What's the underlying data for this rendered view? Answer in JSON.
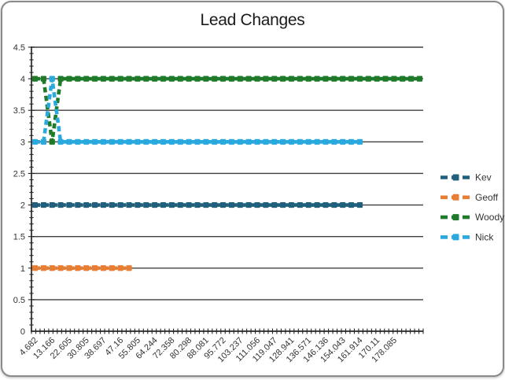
{
  "window": {
    "background": "#ffffff",
    "border_color": "#8a8a8a"
  },
  "chart_data": {
    "type": "line",
    "title": "Lead Changes",
    "xlabel": "",
    "ylabel": "",
    "ylim": [
      0,
      4.5
    ],
    "ytick_step": 0.5,
    "ytick_labels": [
      "0",
      "0.5",
      "1",
      "1.5",
      "2",
      "2.5",
      "3",
      "3.5",
      "4",
      "4.5"
    ],
    "x_tick_labels": [
      "4.682",
      "13.166",
      "22.605",
      "30.805",
      "38.697",
      "47.16",
      "55.805",
      "64.244",
      "72.358",
      "80.298",
      "88.081",
      "95.772",
      "103.237",
      "111.056",
      "119.047",
      "128.941",
      "136.571",
      "146.136",
      "154.043",
      "161.914",
      "170.11",
      "178.085"
    ],
    "label_every_n_points": 2,
    "n_points": 46,
    "grid": true,
    "legend_position": "right",
    "colors": {
      "grid": "#3f3f3f",
      "axis": "#262626",
      "text": "#333333",
      "title": "#1a1a1a"
    },
    "series": [
      {
        "name": "Kev",
        "color": "#20607D",
        "values": [
          2,
          2,
          2,
          2,
          2,
          2,
          2,
          2,
          2,
          2,
          2,
          2,
          2,
          2,
          2,
          2,
          2,
          2,
          2,
          2,
          2,
          2,
          2,
          2,
          2,
          2,
          2,
          2,
          2,
          2,
          2,
          2,
          2,
          2,
          2,
          2,
          2,
          2,
          2,
          null,
          null,
          null,
          null,
          null,
          null,
          null
        ]
      },
      {
        "name": "Geoff",
        "color": "#E87D34",
        "values": [
          1,
          1,
          1,
          1,
          1,
          1,
          1,
          1,
          1,
          1,
          1,
          1,
          null,
          null,
          null,
          null,
          null,
          null,
          null,
          null,
          null,
          null,
          null,
          null,
          null,
          null,
          null,
          null,
          null,
          null,
          null,
          null,
          null,
          null,
          null,
          null,
          null,
          null,
          null,
          null,
          null,
          null,
          null,
          null,
          null,
          null
        ]
      },
      {
        "name": "Woody",
        "color": "#1F7A2A",
        "values": [
          4,
          4,
          3,
          4,
          4,
          4,
          4,
          4,
          4,
          4,
          4,
          4,
          4,
          4,
          4,
          4,
          4,
          4,
          4,
          4,
          4,
          4,
          4,
          4,
          4,
          4,
          4,
          4,
          4,
          4,
          4,
          4,
          4,
          4,
          4,
          4,
          4,
          4,
          4,
          4,
          4,
          4,
          4,
          4,
          4,
          4
        ]
      },
      {
        "name": "Nick",
        "color": "#2AA9DF",
        "values": [
          3,
          3,
          4,
          3,
          3,
          3,
          3,
          3,
          3,
          3,
          3,
          3,
          3,
          3,
          3,
          3,
          3,
          3,
          3,
          3,
          3,
          3,
          3,
          3,
          3,
          3,
          3,
          3,
          3,
          3,
          3,
          3,
          3,
          3,
          3,
          3,
          3,
          3,
          3,
          null,
          null,
          null,
          null,
          null,
          null,
          null
        ]
      }
    ]
  }
}
